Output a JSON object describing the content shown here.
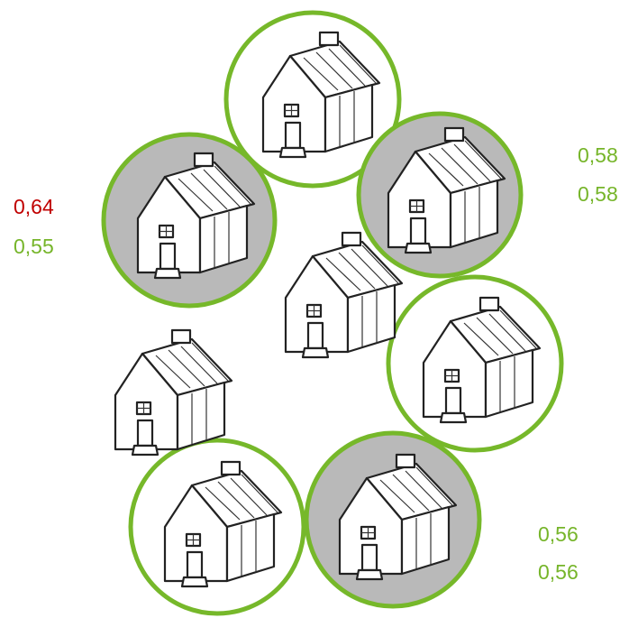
{
  "labels": {
    "left": [
      "0,64",
      "0,55"
    ],
    "right_top": [
      "0,58",
      "0,58"
    ],
    "right_bottom": [
      "0,56",
      "0,56"
    ]
  }
}
